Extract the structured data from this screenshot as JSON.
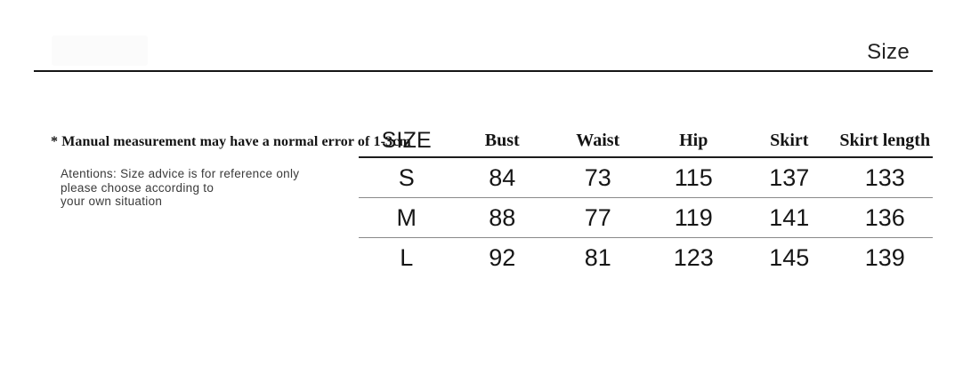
{
  "header": {
    "title": "Size"
  },
  "notes": {
    "measurement": "* Manual measurement may have a normal error of 1-3cm",
    "attention_lines": [
      "Atentions: Size advice is for reference only",
      "please choose according to",
      "your own situation"
    ]
  },
  "size_table": {
    "columns": [
      "SIZE",
      "Bust",
      "Waist",
      "Hip",
      "Skirt",
      "Skirt length"
    ],
    "rows": [
      [
        "S",
        "84",
        "73",
        "115",
        "137",
        "133"
      ],
      [
        "M",
        "88",
        "77",
        "119",
        "141",
        "136"
      ],
      [
        "L",
        "92",
        "81",
        "123",
        "145",
        "139"
      ]
    ]
  },
  "colors": {
    "background": "#ffffff",
    "text_primary": "#161616",
    "text_secondary": "#3a3a3a",
    "rule_dark": "#151515",
    "rule_gray": "#8a8a8a",
    "watermark": "#fbfbfb"
  }
}
